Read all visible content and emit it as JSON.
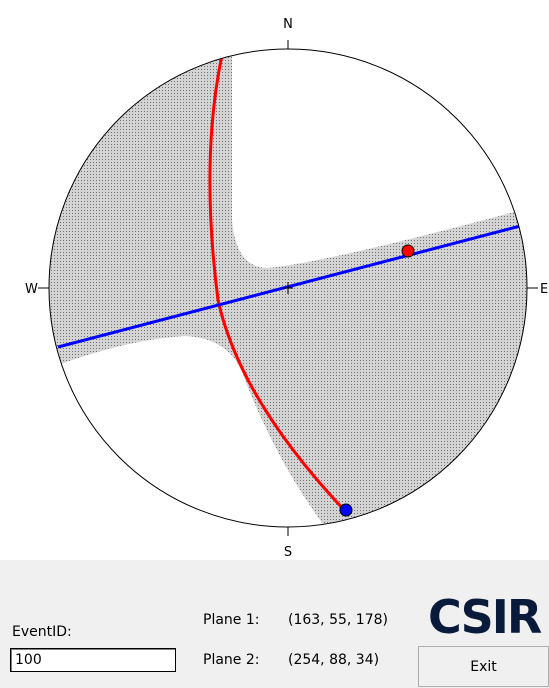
{
  "stereonet": {
    "north": "N",
    "south": "S",
    "west": "W",
    "east": "E"
  },
  "form": {
    "event_id_label": "EventID:",
    "event_id_value": "100",
    "plane1_label": "Plane 1:",
    "plane1_value": "(163, 55, 178)",
    "plane2_label": "Plane 2:",
    "plane2_value": "(254, 88, 34)",
    "logo": "CSIR",
    "exit_button": "Exit"
  }
}
